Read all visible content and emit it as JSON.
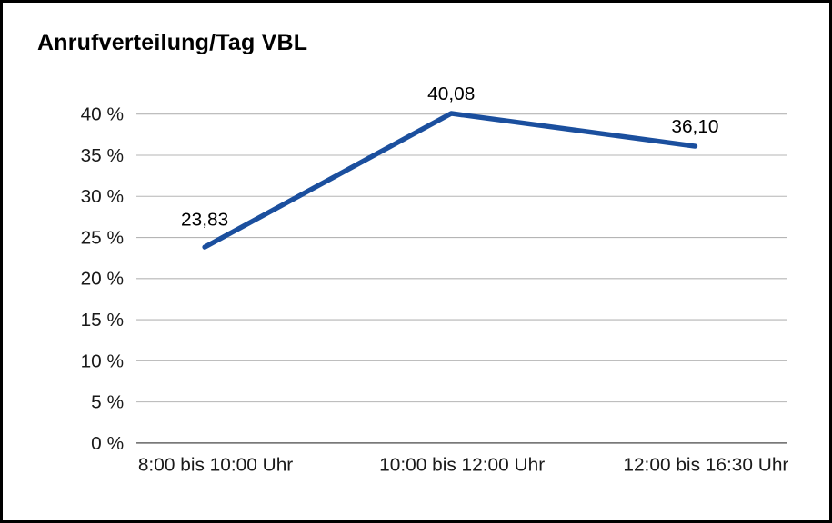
{
  "chart_data": {
    "type": "line",
    "title": "Anrufverteilung/Tag VBL",
    "categories": [
      "8:00 bis 10:00 Uhr",
      "10:00 bis 12:00 Uhr",
      "12:00 bis 16:30 Uhr"
    ],
    "values": [
      23.83,
      40.08,
      36.1
    ],
    "value_labels": [
      "23,83",
      "40,08",
      "36,10"
    ],
    "series_name": "Anrufverteilung",
    "xlabel": "",
    "ylabel": "",
    "ylim": [
      0,
      40
    ],
    "ytick_step": 5,
    "ytick_labels": [
      "0 %",
      "5 %",
      "10 %",
      "15 %",
      "20 %",
      "25 %",
      "30 %",
      "35 %",
      "40 %"
    ],
    "grid": true,
    "legend": "none",
    "line_color": "#1b4f9e",
    "grid_color": "#b5b5b5",
    "axis_color": "#666666",
    "text_color": "#1a1a1a"
  }
}
